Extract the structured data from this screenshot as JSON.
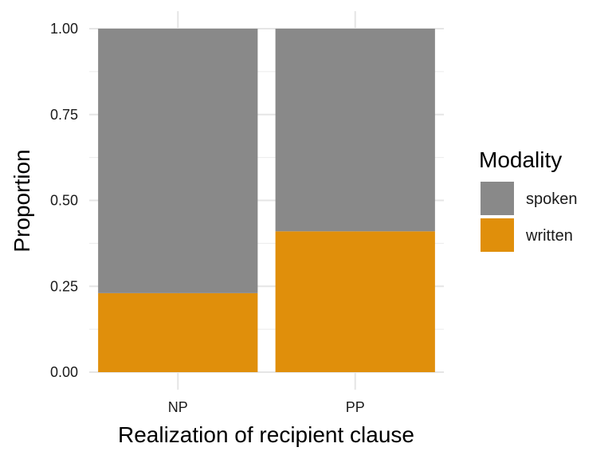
{
  "chart_data": {
    "type": "bar",
    "stacked": true,
    "categories": [
      "NP",
      "PP"
    ],
    "series": [
      {
        "name": "spoken",
        "color": "#898989",
        "values": [
          0.77,
          0.59
        ]
      },
      {
        "name": "written",
        "color": "#E08F0B",
        "values": [
          0.23,
          0.41
        ]
      }
    ],
    "xlabel": "Realization of recipient clause",
    "ylabel": "Proportion",
    "ylim": [
      0,
      1
    ],
    "yticks": [
      "0.00",
      "0.25",
      "0.50",
      "0.75",
      "1.00"
    ],
    "grid": true,
    "legend": {
      "title": "Modality",
      "placement": "right",
      "items": [
        "spoken",
        "written"
      ]
    }
  }
}
